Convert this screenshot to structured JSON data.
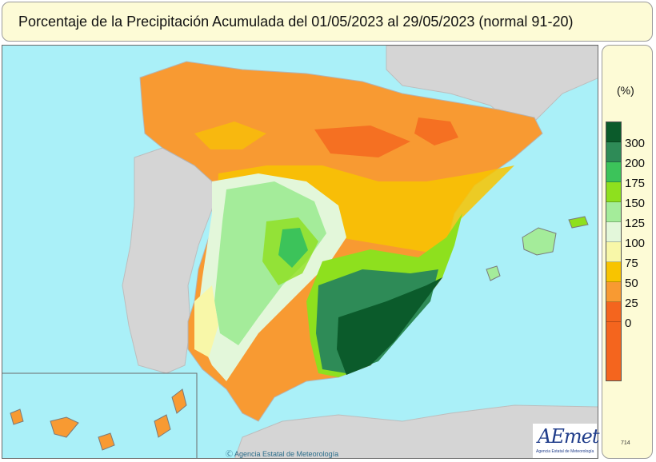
{
  "title": "Porcentaje de la Precipitación Acumulada  del 01/05/2023 al 29/05/2023  (normal 91-20)",
  "legend": {
    "unit": "(%)",
    "classes": [
      {
        "label": "300",
        "color": "#0b5b2b"
      },
      {
        "label": "200",
        "color": "#2e8b57"
      },
      {
        "label": "175",
        "color": "#3cc35a"
      },
      {
        "label": "150",
        "color": "#8ee01e"
      },
      {
        "label": "125",
        "color": "#a4ec9a"
      },
      {
        "label": "100",
        "color": "#e3f7da"
      },
      {
        "label": "75",
        "color": "#f8f7a8"
      },
      {
        "label": "50",
        "color": "#f8c400"
      },
      {
        "label": "25",
        "color": "#f89a32"
      },
      {
        "label": "0",
        "color": "#f4651e"
      }
    ],
    "bottom_color": "#f4651e"
  },
  "logo": {
    "text": "AEmet",
    "subtitle": "Agencia Estatal de Meteorología"
  },
  "credit": "Ⓒ Agencia Estatal de Meteorología",
  "map_code": "714",
  "colors": {
    "sea": "#aaf0f8",
    "other_land": "#d5d5d5",
    "frame_bg": "#fdfbd6"
  }
}
